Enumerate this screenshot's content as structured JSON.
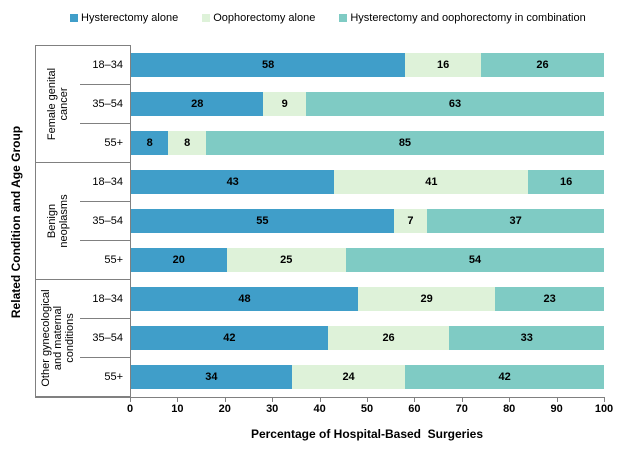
{
  "chart_data": {
    "type": "bar",
    "orientation": "horizontal",
    "stacked": true,
    "percent_stacked": true,
    "xlabel": "Percentage of Hospital-Based  Surgeries",
    "ylabel": "Related Condition and Age Group",
    "xlim": [
      0,
      100
    ],
    "xticks": [
      0,
      10,
      20,
      30,
      40,
      50,
      60,
      70,
      80,
      90,
      100
    ],
    "grid": false,
    "legend_position": "top",
    "series": [
      {
        "name": "Hysterectomy alone",
        "color": "#409EC9"
      },
      {
        "name": "Oophorectomy alone",
        "color": "#DEF2D9"
      },
      {
        "name": "Hysterectomy and oophorectomy in combination",
        "color": "#7FCBC4"
      }
    ],
    "groups": [
      {
        "label": "Female genital cancer",
        "label_lines": [
          "Female genital",
          "cancer"
        ],
        "rows": [
          {
            "age": "18–34",
            "values": [
              58,
              16,
              26
            ]
          },
          {
            "age": "35–54",
            "values": [
              28,
              9,
              63
            ]
          },
          {
            "age": "55+",
            "values": [
              8,
              8,
              85
            ]
          }
        ]
      },
      {
        "label": "Benign neoplasms",
        "label_lines": [
          "Benign",
          "neoplasms"
        ],
        "rows": [
          {
            "age": "18–34",
            "values": [
              43,
              41,
              16
            ]
          },
          {
            "age": "35–54",
            "values": [
              55,
              7,
              37
            ]
          },
          {
            "age": "55+",
            "values": [
              20,
              25,
              54
            ]
          }
        ]
      },
      {
        "label": "Other gynecological and maternal conditions",
        "label_lines": [
          "Other gynecological",
          "and maternal",
          "conditions"
        ],
        "rows": [
          {
            "age": "18–34",
            "values": [
              48,
              29,
              23
            ]
          },
          {
            "age": "35–54",
            "values": [
              42,
              26,
              33
            ]
          },
          {
            "age": "55+",
            "values": [
              34,
              24,
              42
            ]
          }
        ]
      }
    ]
  },
  "colors": {
    "axis": "#808080",
    "text": "#000000",
    "background": "#FFFFFF"
  }
}
